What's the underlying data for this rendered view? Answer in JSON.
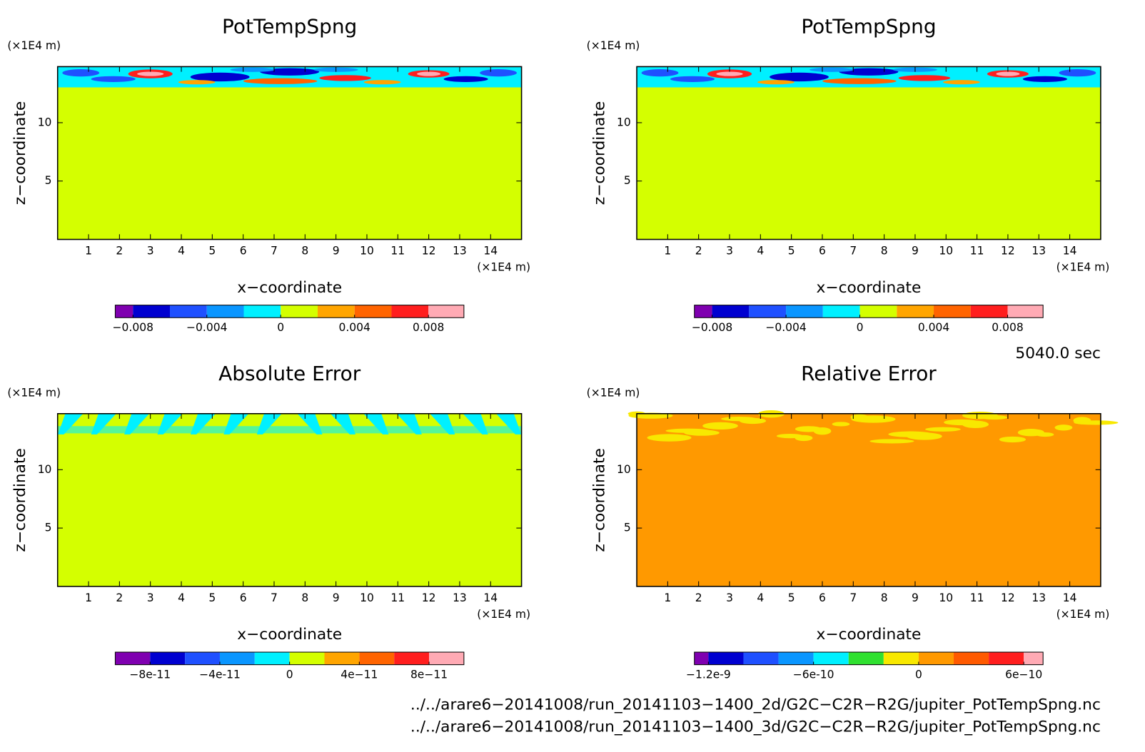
{
  "chart_data": [
    {
      "type": "contour",
      "title": "PotTempSpng",
      "xlabel": "x−coordinate",
      "ylabel": "z−coordinate",
      "xunit": "(×1E4 m)",
      "yunit": "(×1E4 m)",
      "xlim": [
        0,
        15
      ],
      "ylim": [
        0,
        14.8
      ],
      "xticks": [
        1,
        2,
        3,
        4,
        5,
        6,
        7,
        8,
        9,
        10,
        11,
        12,
        13,
        14
      ],
      "yticks": [
        5,
        10
      ],
      "colors": [
        "#7f00b0",
        "#0000d0",
        "#1f50ff",
        "#0a96ff",
        "#00f0ff",
        "#d4ff00",
        "#ffa500",
        "#ff6400",
        "#ff1e1e",
        "#ffaab4"
      ],
      "levels": [
        -0.008,
        -0.006,
        -0.004,
        -0.002,
        0,
        0.002,
        0.004,
        0.006,
        0.008
      ],
      "clim": [
        -0.00896,
        0.00992
      ],
      "cbticks": [
        -0.008,
        -0.004,
        0,
        0.004,
        0.008
      ]
    },
    {
      "type": "contour",
      "title": "PotTempSpng",
      "xlabel": "x−coordinate",
      "ylabel": "z−coordinate",
      "xunit": "(×1E4 m)",
      "yunit": "(×1E4 m)",
      "xlim": [
        0,
        15
      ],
      "ylim": [
        0,
        14.8
      ],
      "xticks": [
        1,
        2,
        3,
        4,
        5,
        6,
        7,
        8,
        9,
        10,
        11,
        12,
        13,
        14
      ],
      "yticks": [
        5,
        10
      ],
      "colors": [
        "#7f00b0",
        "#0000d0",
        "#1f50ff",
        "#0a96ff",
        "#00f0ff",
        "#d4ff00",
        "#ffa500",
        "#ff6400",
        "#ff1e1e",
        "#ffaab4"
      ],
      "levels": [
        -0.008,
        -0.006,
        -0.004,
        -0.002,
        0,
        0.002,
        0.004,
        0.006,
        0.008
      ],
      "clim": [
        -0.00896,
        0.00992
      ],
      "cbticks": [
        -0.008,
        -0.004,
        0,
        0.004,
        0.008
      ]
    },
    {
      "type": "contour",
      "title": "Absolute Error",
      "xlabel": "x−coordinate",
      "ylabel": "z−coordinate",
      "xunit": "(×1E4 m)",
      "yunit": "(×1E4 m)",
      "xlim": [
        0,
        15
      ],
      "ylim": [
        0,
        14.8
      ],
      "xticks": [
        1,
        2,
        3,
        4,
        5,
        6,
        7,
        8,
        9,
        10,
        11,
        12,
        13,
        14
      ],
      "yticks": [
        5,
        10
      ],
      "colors": [
        "#7f00b0",
        "#0000d0",
        "#1f50ff",
        "#0a96ff",
        "#00f0ff",
        "#d4ff00",
        "#ffa500",
        "#ff6400",
        "#ff1e1e",
        "#ffaab4"
      ],
      "levels": [
        -8e-11,
        -6e-11,
        -4e-11,
        -2e-11,
        0,
        2e-11,
        4e-11,
        6e-11,
        8e-11
      ],
      "clim": [
        -1e-10,
        1e-10
      ],
      "cbticks": [
        -8e-11,
        -4e-11,
        0,
        4e-11,
        8e-11
      ]
    },
    {
      "type": "contour",
      "title": "Relative Error",
      "xlabel": "x−coordinate",
      "ylabel": "z−coordinate",
      "xunit": "(×1E4 m)",
      "yunit": "(×1E4 m)",
      "xlim": [
        0,
        15
      ],
      "ylim": [
        0,
        14.8
      ],
      "xticks": [
        1,
        2,
        3,
        4,
        5,
        6,
        7,
        8,
        9,
        10,
        11,
        12,
        13,
        14
      ],
      "yticks": [
        5,
        10
      ],
      "colors": [
        "#7f00b0",
        "#0000d0",
        "#1f50ff",
        "#0a96ff",
        "#00f0ff",
        "#30e030",
        "#f8e800",
        "#ff9900",
        "#ff5a00",
        "#ff1e1e",
        "#ffaab4"
      ],
      "levels": [
        -1.2e-09,
        -1e-09,
        -8e-10,
        -6e-10,
        -4e-10,
        -2e-10,
        0,
        2e-10,
        4e-10,
        6e-10
      ],
      "clim": [
        -1.28e-09,
        7.1e-10
      ],
      "cbticks": [
        -1.2e-09,
        -6e-10,
        0,
        6e-10
      ]
    }
  ],
  "time": "5040.0 sec",
  "files": [
    "../../arare6−20141008/run_20141103−1400_2d/G2C−C2R−R2G/jupiter_PotTempSpng.nc",
    "../../arare6−20141008/run_20141103−1400_3d/G2C−C2R−R2G/jupiter_PotTempSpng.nc"
  ]
}
